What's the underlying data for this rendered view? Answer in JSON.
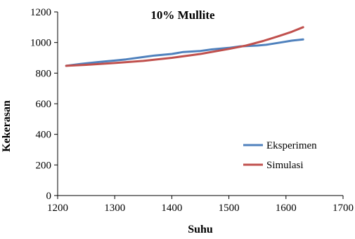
{
  "chart_data": {
    "type": "line",
    "title": "10% Mullite",
    "xlabel": "Suhu",
    "ylabel": "Kekerasan",
    "xlim": [
      1200,
      1700
    ],
    "ylim": [
      0,
      1200
    ],
    "x_ticks": [
      1200,
      1300,
      1400,
      1500,
      1600,
      1700
    ],
    "y_ticks": [
      0,
      200,
      400,
      600,
      800,
      1000,
      1200
    ],
    "grid": false,
    "legend_position": "right",
    "series": [
      {
        "name": "Eksperimen",
        "color": "#4F81BD",
        "x": [
          1215,
          1240,
          1270,
          1300,
          1320,
          1350,
          1370,
          1400,
          1420,
          1450,
          1470,
          1500,
          1520,
          1550,
          1565,
          1590,
          1610,
          1630
        ],
        "y": [
          848,
          860,
          872,
          882,
          890,
          905,
          915,
          925,
          938,
          945,
          955,
          965,
          975,
          980,
          985,
          1000,
          1012,
          1020
        ]
      },
      {
        "name": "Simulasi",
        "color": "#C0504D",
        "x": [
          1215,
          1250,
          1300,
          1350,
          1400,
          1450,
          1500,
          1530,
          1560,
          1590,
          1610,
          1630
        ],
        "y": [
          848,
          854,
          866,
          880,
          900,
          925,
          958,
          980,
          1010,
          1045,
          1070,
          1100
        ]
      }
    ]
  }
}
